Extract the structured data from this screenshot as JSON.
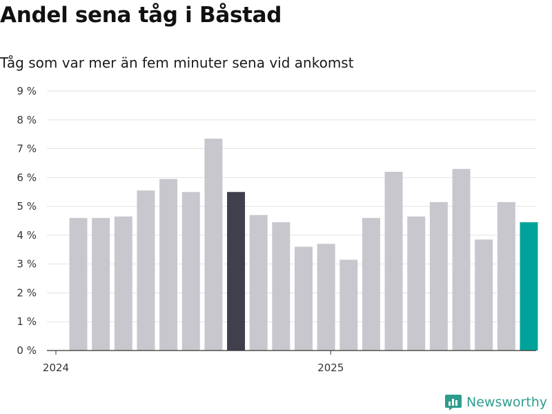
{
  "chart_data": {
    "type": "bar",
    "title": "Andel sena tåg i Båstad",
    "subtitle": "Tåg som var mer än fem minuter sena vid ankomst",
    "x": [
      "2024-01",
      "2024-02",
      "2024-03",
      "2024-04",
      "2024-05",
      "2024-06",
      "2024-07",
      "2024-08",
      "2024-09",
      "2024-10",
      "2024-11",
      "2024-12",
      "2025-01",
      "2025-02",
      "2025-03",
      "2025-04",
      "2025-05",
      "2025-06",
      "2025-07",
      "2025-08",
      "2025-09"
    ],
    "values": [
      4.6,
      4.6,
      4.65,
      5.55,
      5.95,
      5.5,
      7.35,
      5.5,
      4.7,
      4.45,
      3.6,
      3.7,
      3.15,
      4.6,
      6.2,
      4.65,
      5.15,
      6.3,
      3.85,
      5.15,
      4.45
    ],
    "highlight": {
      "2024-08": "#403f4c",
      "2025-09": "#00a39a"
    },
    "bar_color": "#c8c7ce",
    "xtick_labels": [
      {
        "x": "2024-01",
        "label": "2024"
      },
      {
        "x": "2025-01",
        "label": "2025"
      }
    ],
    "ylim": [
      0,
      9
    ],
    "yticks": [
      {
        "value": 0,
        "label": "0 %"
      },
      {
        "value": 1,
        "label": "1 %"
      },
      {
        "value": 2,
        "label": "2 %"
      },
      {
        "value": 3,
        "label": "3 %"
      },
      {
        "value": 4,
        "label": "4 %"
      },
      {
        "value": 5,
        "label": "5 %"
      },
      {
        "value": 6,
        "label": "6 %"
      },
      {
        "value": 7,
        "label": "7 %"
      },
      {
        "value": 8,
        "label": "8 %"
      },
      {
        "value": 9,
        "label": "9 %"
      }
    ],
    "grid": true
  },
  "brand": {
    "name": "Newsworthy",
    "icon": "newsworthy-logo-icon",
    "color": "#2e9c8c"
  }
}
